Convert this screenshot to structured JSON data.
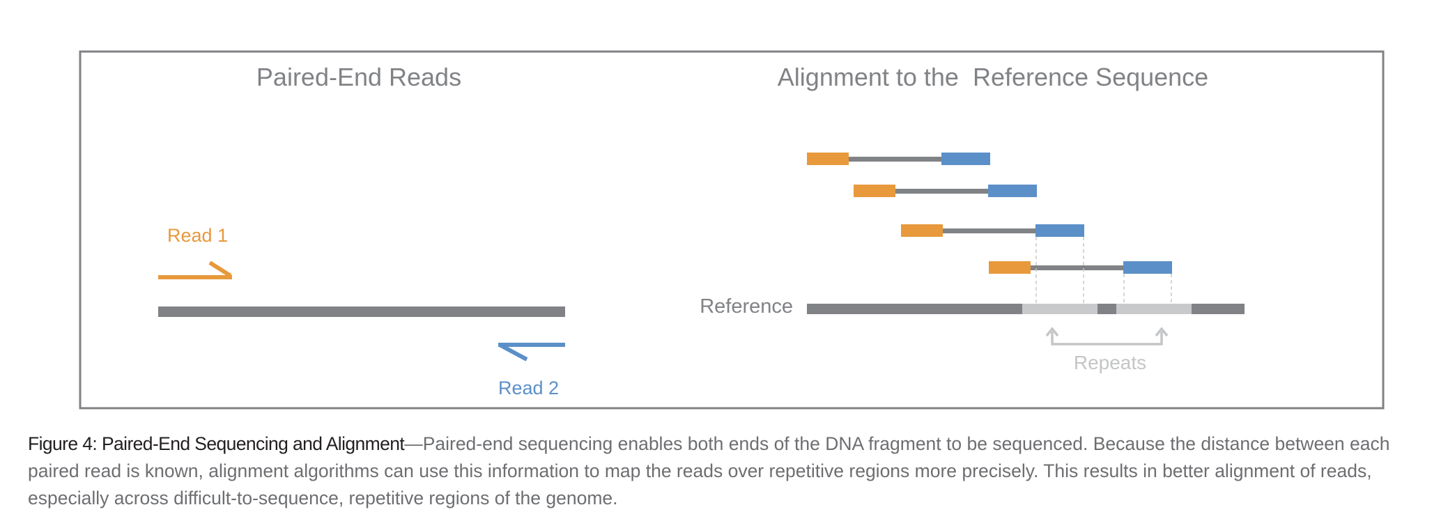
{
  "colors": {
    "read1": "#e8993c",
    "read2": "#5b8fc8",
    "reference": "#808285",
    "repeat": "#c8c9cb",
    "frame": "#808285",
    "caption_text": "#6d6e71",
    "caption_title": "#231f20"
  },
  "left_panel": {
    "title": "Paired-End Reads",
    "read1_label": "Read 1",
    "read2_label": "Read 2"
  },
  "right_panel": {
    "title": "Alignment to the  Reference Sequence",
    "reference_label": "Reference",
    "repeats_label": "Repeats",
    "read_pair_count": 4,
    "repeat_region_count": 2
  },
  "caption": {
    "title": "Figure 4: Paired-End Sequencing and Alignment",
    "dash": "—",
    "body": "Paired-end sequencing enables both ends of the DNA fragment to be sequenced. Because the distance between each paired read is known, alignment algorithms can use this information to map the reads over repetitive regions more precisely. This results in better alignment of reads, especially across difficult-to-sequence, repetitive regions of the genome."
  }
}
